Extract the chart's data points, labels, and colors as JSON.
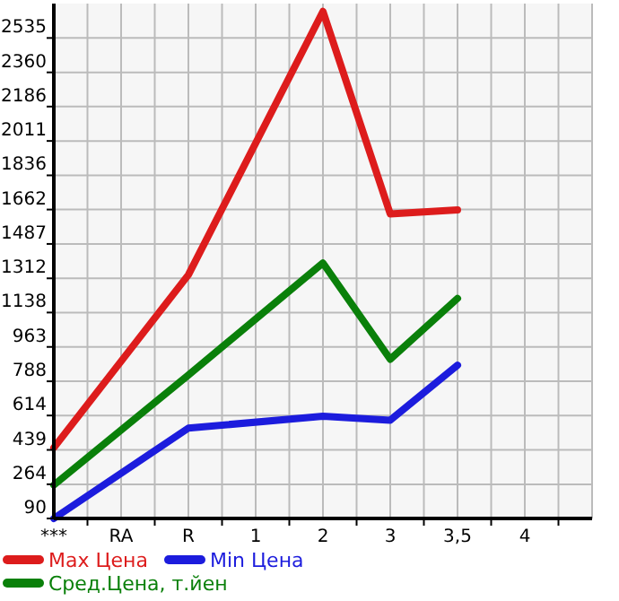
{
  "chart_data": {
    "type": "line",
    "categories": [
      "***",
      "RA",
      "R",
      "1",
      "2",
      "3",
      "3,5",
      "4"
    ],
    "series": [
      {
        "name": "Max Цена",
        "color": "#dd1c1c",
        "values": [
          450,
          null,
          1330,
          null,
          2670,
          1640,
          1660,
          null
        ]
      },
      {
        "name": "Min Цена",
        "color": "#1c1cdd",
        "values": [
          90,
          null,
          550,
          null,
          610,
          590,
          870,
          null
        ]
      },
      {
        "name": "Сред.Цена, т.йен",
        "color": "#0a800a",
        "values": [
          260,
          null,
          820,
          null,
          1390,
          900,
          1210,
          null
        ]
      }
    ],
    "ylim": [
      90,
      2710
    ],
    "yticks": [
      90,
      264,
      439,
      614,
      788,
      963,
      1138,
      1312,
      1487,
      1662,
      1836,
      2011,
      2186,
      2360,
      2535
    ],
    "grid": true,
    "legend": "bottom",
    "marker": "none",
    "line_style": "solid"
  }
}
